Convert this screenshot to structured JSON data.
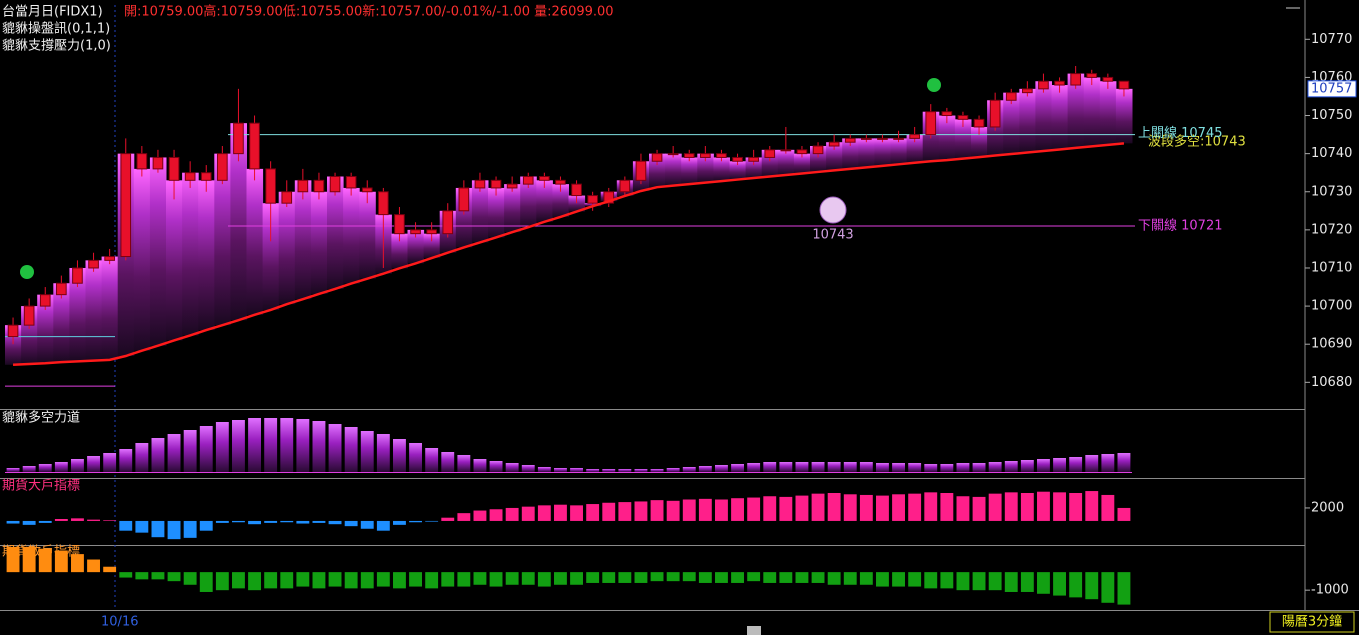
{
  "chart_data": [
    {
      "type": "candlestick",
      "title": "台當月日(FIDX1)",
      "quote": "開:10759.00高:10759.00低:10755.00新:10757.00/-0.01%/-1.00 量:26099.00",
      "indicators": [
        "貔貅操盤訊(0,1,1)",
        "貔貅支撐壓力(1,0)"
      ],
      "categories": [
        null,
        null,
        null,
        null,
        null,
        null,
        null,
        "10/16",
        null,
        null,
        null,
        null,
        null,
        null,
        null,
        null,
        null,
        null,
        null,
        null,
        null,
        null,
        null,
        null,
        null,
        null,
        null,
        null,
        null,
        null,
        null,
        null,
        null,
        null,
        null,
        null,
        null,
        null,
        null,
        null,
        null,
        null,
        null,
        null,
        null,
        null,
        null,
        null,
        null,
        null,
        null,
        null,
        null,
        null,
        null,
        null,
        null,
        null,
        null,
        null,
        null,
        null,
        null,
        null,
        null,
        null,
        null,
        null,
        null,
        null
      ],
      "open": [
        10692,
        10695,
        10700,
        10703,
        10706,
        10710,
        10712,
        10713,
        10740,
        10736,
        10739,
        10733,
        10735,
        10733,
        10740,
        10748,
        10736,
        10727,
        10730,
        10733,
        10730,
        10734,
        10731,
        10730,
        10724,
        10719,
        10720,
        10719,
        10725,
        10731,
        10733,
        10731,
        10732,
        10734,
        10733,
        10732,
        10729,
        10727,
        10730,
        10733,
        10738,
        10740,
        10740,
        10739,
        10740,
        10739,
        10738,
        10739,
        10741,
        10741,
        10740,
        10742,
        10743,
        10744,
        10744,
        10744,
        10744,
        10745,
        10751,
        10750,
        10749,
        10747,
        10754,
        10756,
        10757,
        10759,
        10758,
        10761,
        10760,
        10759
      ],
      "high": [
        10697,
        10702,
        10705,
        10708,
        10712,
        10714,
        10715,
        10744,
        10742,
        10741,
        10741,
        10738,
        10737,
        10742,
        10757,
        10750,
        10738,
        10733,
        10736,
        10735,
        10735,
        10735,
        10733,
        10731,
        10726,
        10722,
        10722,
        10727,
        10733,
        10735,
        10734,
        10734,
        10735,
        10735,
        10734,
        10733,
        10730,
        10731,
        10734,
        10740,
        10741,
        10742,
        10741,
        10742,
        10741,
        10740,
        10741,
        10742,
        10747,
        10742,
        10743,
        10745,
        10745,
        10745,
        10745,
        10746,
        10747,
        10753,
        10752,
        10751,
        10750,
        10756,
        10757,
        10759,
        10761,
        10760,
        10763,
        10762,
        10761,
        10759
      ],
      "low": [
        10690,
        10694,
        10699,
        10702,
        10705,
        10709,
        10711,
        10712,
        10734,
        10735,
        10728,
        10731,
        10730,
        10732,
        10738,
        10733,
        10717,
        10726,
        10728,
        10728,
        10729,
        10729,
        10727,
        10710,
        10717,
        10718,
        10717,
        10718,
        10724,
        10730,
        10729,
        10730,
        10731,
        10731,
        10730,
        10727,
        10725,
        10726,
        10729,
        10732,
        10737,
        10739,
        10738,
        10738,
        10738,
        10737,
        10737,
        10738,
        10740,
        10739,
        10739,
        10741,
        10742,
        10743,
        10743,
        10743,
        10743,
        10744,
        10748,
        10747,
        10745,
        10746,
        10753,
        10755,
        10756,
        10756,
        10757,
        10758,
        10757,
        10755
      ],
      "close": [
        10695,
        10700,
        10703,
        10706,
        10710,
        10712,
        10713,
        10740,
        10736,
        10739,
        10733,
        10735,
        10733,
        10740,
        10748,
        10736,
        10727,
        10730,
        10733,
        10730,
        10734,
        10731,
        10730,
        10724,
        10719,
        10720,
        10719,
        10725,
        10731,
        10733,
        10731,
        10732,
        10734,
        10733,
        10732,
        10729,
        10727,
        10730,
        10733,
        10738,
        10740,
        10740,
        10739,
        10740,
        10739,
        10738,
        10739,
        10741,
        10741,
        10740,
        10742,
        10743,
        10744,
        10744,
        10744,
        10744,
        10745,
        10751,
        10750,
        10749,
        10747,
        10754,
        10756,
        10757,
        10759,
        10758,
        10761,
        10760,
        10759,
        10757
      ],
      "color": "#e8102a",
      "ma": {
        "color": "#ff1a1a",
        "values": [
          10684.6,
          10684.8,
          10685.0,
          10685.3,
          10685.5,
          10685.7,
          10685.9,
          10686.9,
          10688.3,
          10689.6,
          10691.0,
          10692.3,
          10693.7,
          10695.0,
          10696.3,
          10697.7,
          10699.0,
          10700.5,
          10701.8,
          10703.2,
          10704.5,
          10705.9,
          10707.2,
          10708.5,
          10709.9,
          10711.2,
          10712.6,
          10714.0,
          10715.4,
          10716.7,
          10718.0,
          10719.4,
          10720.7,
          10722.1,
          10723.4,
          10724.8,
          10726.2,
          10727.5,
          10728.9,
          10730.2,
          10731.2,
          10731.6,
          10732.0,
          10732.4,
          10732.8,
          10733.2,
          10733.6,
          10734.0,
          10734.4,
          10734.8,
          10735.2,
          10735.6,
          10736.0,
          10736.4,
          10736.8,
          10737.2,
          10737.6,
          10738.0,
          10738.3,
          10738.7,
          10739.1,
          10739.5,
          10739.9,
          10740.3,
          10740.7,
          10741.1,
          10741.5,
          10741.9,
          10742.3,
          10742.7
        ]
      },
      "ylim": [
        10673,
        10779
      ],
      "yticks": [
        10680,
        10690,
        10700,
        10710,
        10720,
        10730,
        10740,
        10750,
        10760,
        10770
      ],
      "levels": [
        {
          "label": "上關線 10745",
          "value": 10745,
          "color": "#7fdfe0"
        },
        {
          "label": "下關線 10721",
          "value": 10721,
          "color": "#e040e0"
        }
      ],
      "early_levels": [
        {
          "value": 10692,
          "color": "#5fcfe0"
        },
        {
          "value": 10679,
          "color": "#e040e0"
        }
      ],
      "trend_label": "波段多空:10743",
      "ball_label": "10743",
      "price_tag": {
        "value": 10757,
        "label": "10757"
      }
    },
    {
      "type": "bar",
      "title": "貔貅多空力道",
      "color": "#b030e0",
      "ylim": [
        0,
        60
      ],
      "values": [
        4,
        6,
        8,
        10,
        13,
        16,
        19,
        23,
        29,
        34,
        38,
        42,
        46,
        50,
        52,
        54,
        54,
        54,
        53,
        51,
        48,
        45,
        41,
        38,
        33,
        29,
        24,
        20,
        17,
        13,
        11,
        9,
        7,
        5,
        4,
        4,
        3,
        3,
        3,
        3,
        3,
        4,
        5,
        6,
        7,
        8,
        9,
        10,
        10,
        10,
        10,
        10,
        10,
        10,
        9,
        9,
        9,
        8,
        8,
        9,
        9,
        10,
        11,
        12,
        13,
        14,
        15,
        17,
        18,
        19
      ]
    },
    {
      "type": "bar",
      "title": "期貨大戶指標",
      "pos_color": "#ff1f8a",
      "neg_color": "#1e8fff",
      "ylim": [
        -3700,
        6300
      ],
      "yticks": [
        2000
      ],
      "values": [
        -400,
        -600,
        -300,
        300,
        400,
        200,
        100,
        -1500,
        -1800,
        -2500,
        -2800,
        -2600,
        -1500,
        -300,
        -200,
        -500,
        -300,
        -200,
        -400,
        -300,
        -500,
        -800,
        -1200,
        -1500,
        -600,
        -200,
        -100,
        500,
        1200,
        1600,
        1800,
        2000,
        2200,
        2400,
        2500,
        2400,
        2600,
        2800,
        2900,
        3000,
        3200,
        3100,
        3300,
        3400,
        3300,
        3500,
        3600,
        3800,
        3700,
        3900,
        4200,
        4300,
        4100,
        4000,
        3900,
        4100,
        4200,
        4400,
        4300,
        3800,
        3700,
        4200,
        4400,
        4300,
        4500,
        4400,
        4300,
        4600,
        4000,
        2000
      ]
    },
    {
      "type": "bar",
      "title": "期貨散戶指標",
      "pos_color": "#ff8c10",
      "neg_color": "#12a012",
      "ylim": [
        -2100,
        1450
      ],
      "yticks": [
        -1000
      ],
      "values": [
        1400,
        1400,
        1300,
        1200,
        1000,
        700,
        300,
        -300,
        -400,
        -400,
        -500,
        -700,
        -1100,
        -1000,
        -900,
        -1000,
        -900,
        -900,
        -800,
        -900,
        -800,
        -900,
        -900,
        -800,
        -900,
        -800,
        -900,
        -800,
        -800,
        -700,
        -800,
        -700,
        -700,
        -800,
        -700,
        -700,
        -600,
        -600,
        -600,
        -600,
        -500,
        -500,
        -500,
        -600,
        -600,
        -600,
        -500,
        -600,
        -600,
        -600,
        -600,
        -700,
        -700,
        -700,
        -800,
        -800,
        -800,
        -900,
        -900,
        -1000,
        -1000,
        -1000,
        -1100,
        -1100,
        -1200,
        -1300,
        -1400,
        -1500,
        -1700,
        -1800
      ]
    }
  ],
  "footer": {
    "mode": "陽曆3分鐘"
  }
}
